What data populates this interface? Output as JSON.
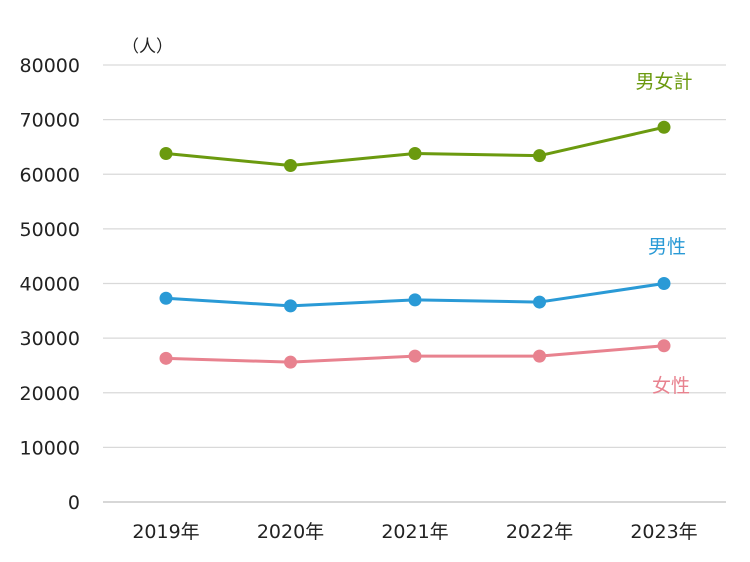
{
  "chart_data": {
    "type": "line",
    "unit": "（人）",
    "categories": [
      "2019年",
      "2020年",
      "2021年",
      "2022年",
      "2023年"
    ],
    "ylim": [
      0,
      80000
    ],
    "yticks": [
      0,
      10000,
      20000,
      30000,
      40000,
      50000,
      60000,
      70000,
      80000
    ],
    "ytick_labels": [
      "0",
      "10000",
      "20000",
      "30000",
      "40000",
      "50000",
      "60000",
      "70000",
      "80000"
    ],
    "grid": true,
    "series": [
      {
        "name": "男女計",
        "color": "#6b9a0f",
        "values": [
          63800,
          61600,
          63800,
          63400,
          68600
        ]
      },
      {
        "name": "男性",
        "color": "#2a9ad6",
        "values": [
          37300,
          35900,
          37000,
          36600,
          40000
        ]
      },
      {
        "name": "女性",
        "color": "#e8828f",
        "values": [
          26300,
          25600,
          26700,
          26700,
          28600
        ]
      }
    ]
  }
}
